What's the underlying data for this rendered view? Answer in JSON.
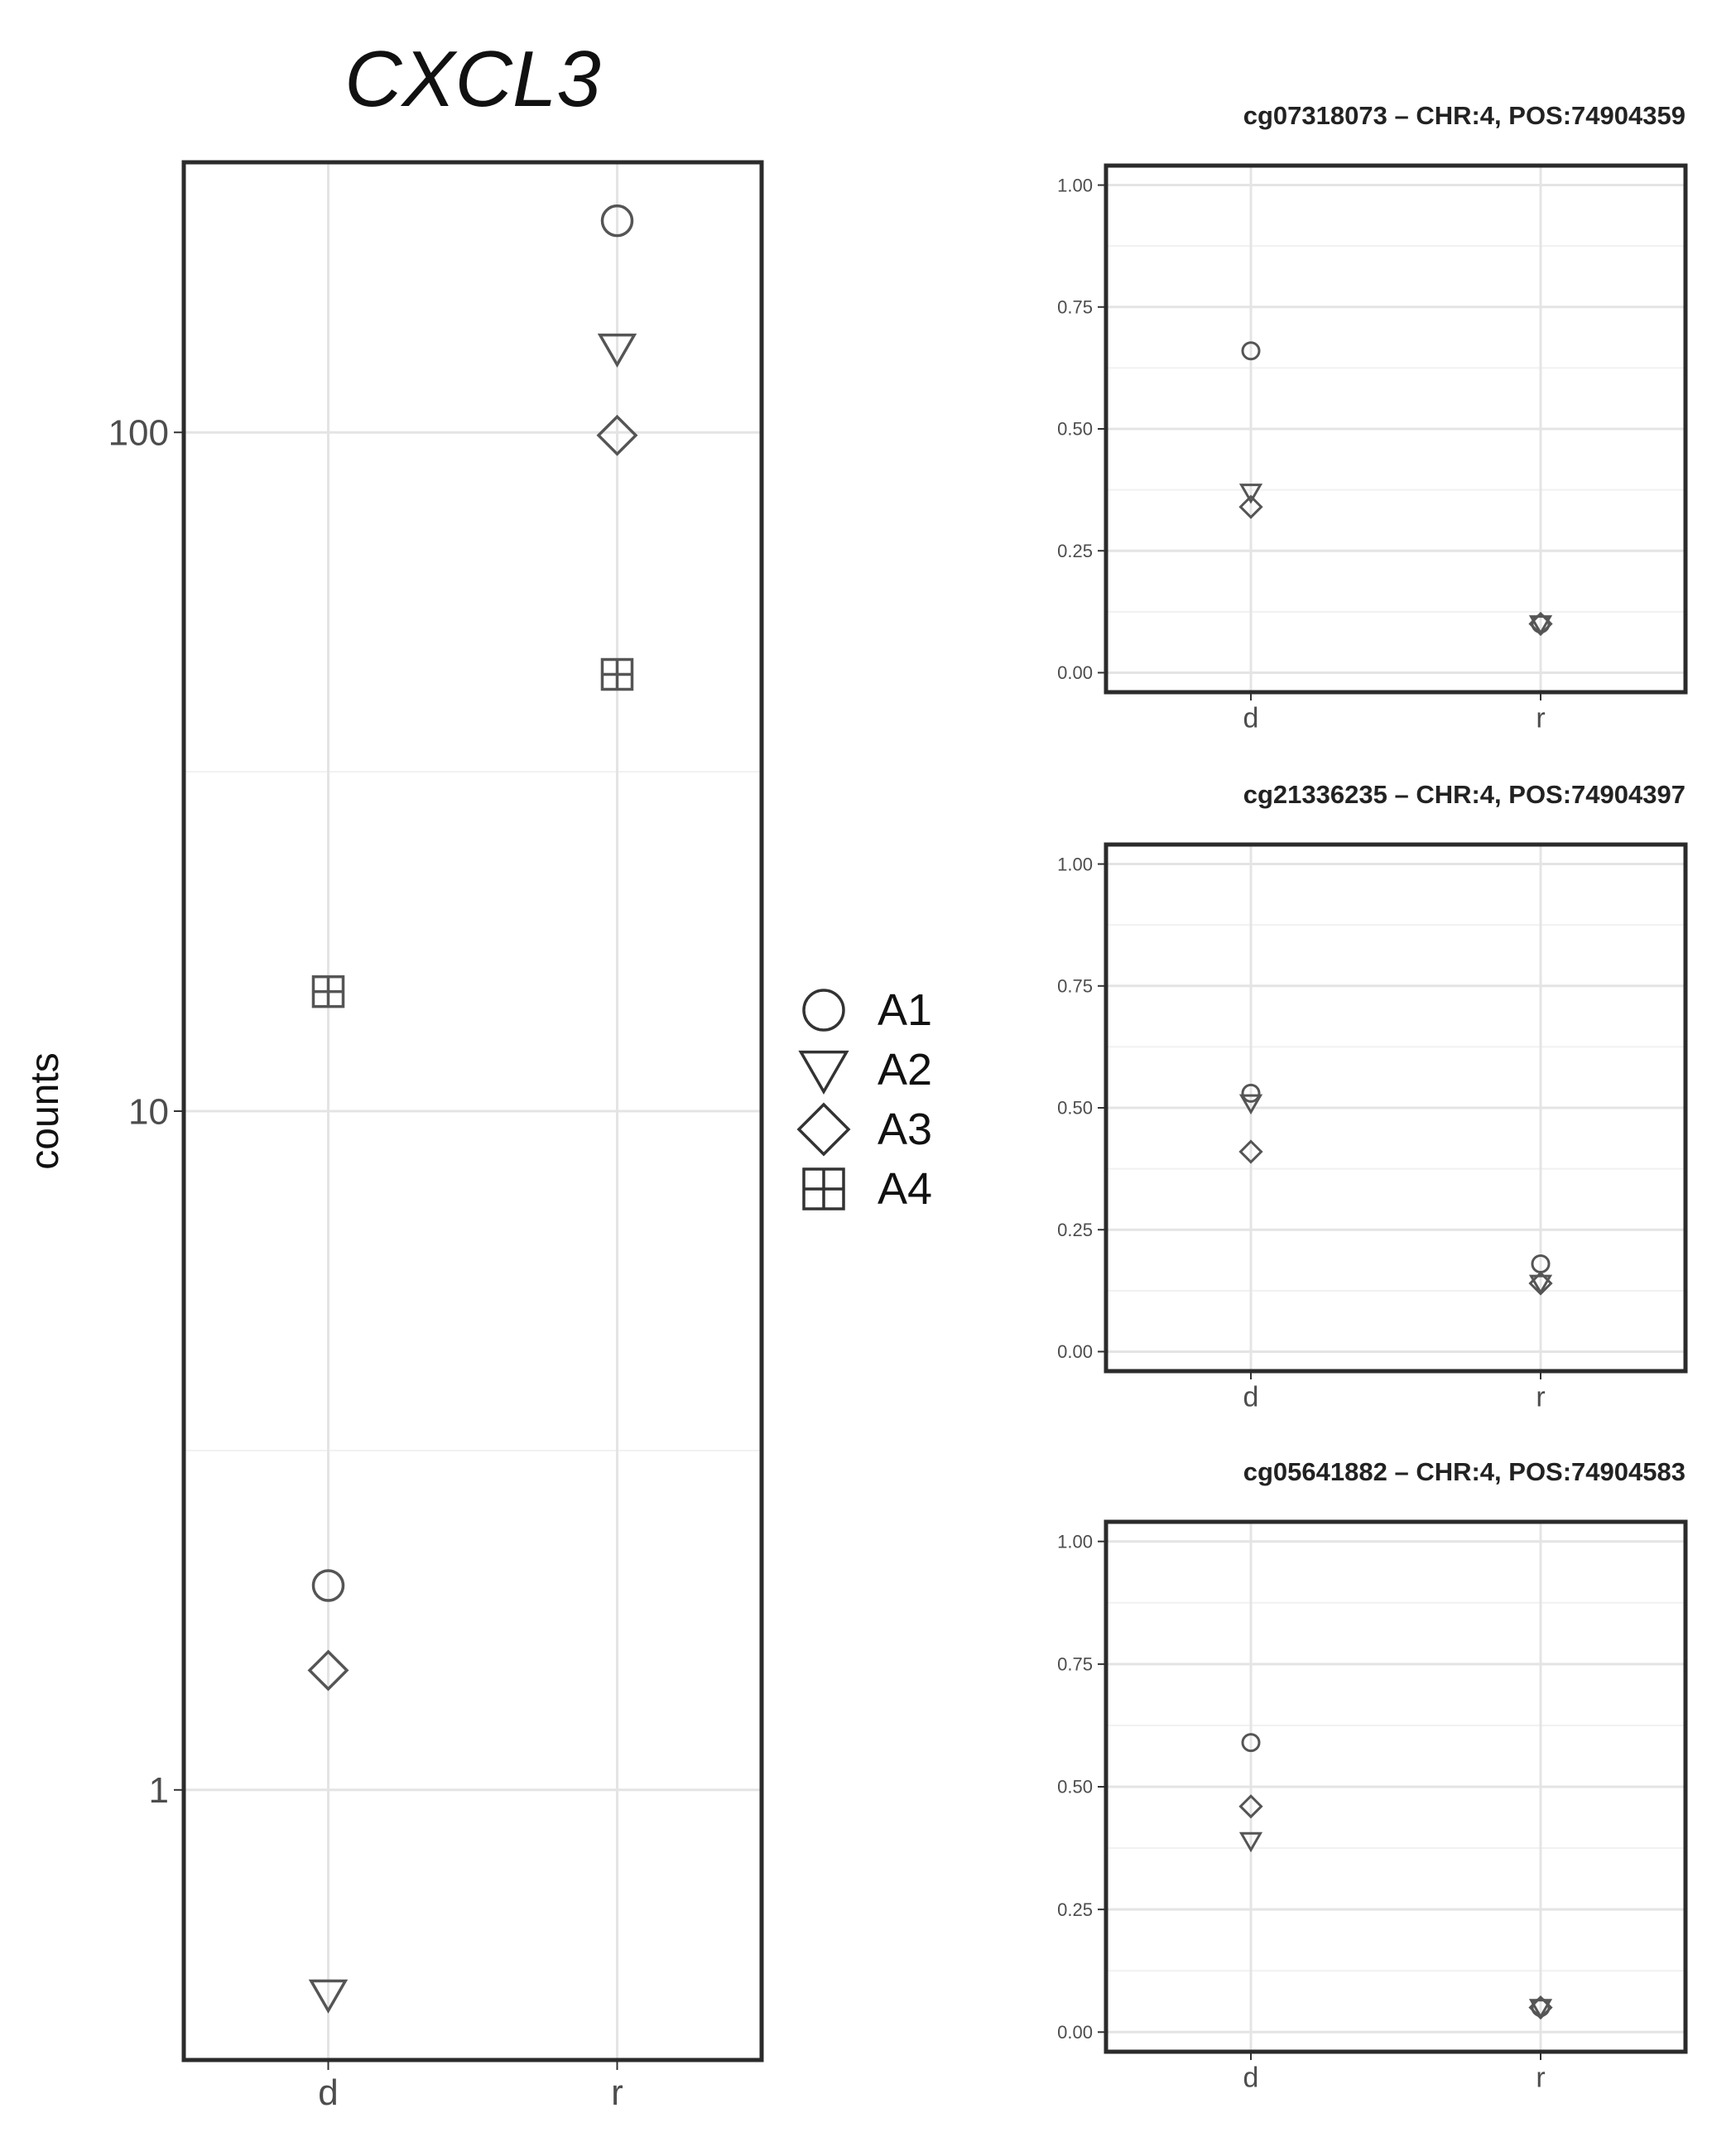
{
  "figure": {
    "legend": {
      "placement": "between-panels",
      "items": [
        {
          "label": "A1",
          "shape": "circle-icon"
        },
        {
          "label": "A2",
          "shape": "triangle-down-icon"
        },
        {
          "label": "A3",
          "shape": "diamond-icon"
        },
        {
          "label": "A4",
          "shape": "square-plus-icon"
        }
      ]
    }
  },
  "chart_data": [
    {
      "type": "scatter",
      "title": "CXCL3",
      "xlabel": "",
      "ylabel": "counts",
      "yscale": "log",
      "categories": [
        "d",
        "r"
      ],
      "ylim": [
        0.4,
        250
      ],
      "y_ticks": [
        1,
        10,
        100
      ],
      "y_tick_labels": [
        "1",
        "10",
        "100"
      ],
      "grid": true,
      "series": [
        {
          "name": "A1",
          "values": [
            2.0,
            205
          ]
        },
        {
          "name": "A2",
          "values": [
            0.5,
            133
          ]
        },
        {
          "name": "A3",
          "values": [
            1.5,
            99
          ]
        },
        {
          "name": "A4",
          "values": [
            15,
            44
          ]
        }
      ]
    },
    {
      "type": "scatter",
      "title": "cg07318073 – CHR:4, POS:74904359",
      "xlabel": "",
      "ylabel": "",
      "categories": [
        "d",
        "r"
      ],
      "ylim": [
        -0.04,
        1.04
      ],
      "y_ticks": [
        0,
        0.25,
        0.5,
        0.75,
        1
      ],
      "y_tick_labels": [
        "0.00",
        "0.25",
        "0.50",
        "0.75",
        "1.00"
      ],
      "grid": true,
      "series": [
        {
          "name": "A1",
          "values": [
            0.66,
            0.1
          ]
        },
        {
          "name": "A2",
          "values": [
            0.37,
            0.1
          ]
        },
        {
          "name": "A3",
          "values": [
            0.34,
            0.1
          ]
        },
        {
          "name": "A4",
          "values": [
            null,
            null
          ]
        }
      ]
    },
    {
      "type": "scatter",
      "title": "cg21336235 – CHR:4, POS:74904397",
      "xlabel": "",
      "ylabel": "",
      "categories": [
        "d",
        "r"
      ],
      "ylim": [
        -0.04,
        1.04
      ],
      "y_ticks": [
        0,
        0.25,
        0.5,
        0.75,
        1
      ],
      "y_tick_labels": [
        "0.00",
        "0.25",
        "0.50",
        "0.75",
        "1.00"
      ],
      "grid": true,
      "series": [
        {
          "name": "A1",
          "values": [
            0.53,
            0.18
          ]
        },
        {
          "name": "A2",
          "values": [
            0.51,
            0.14
          ]
        },
        {
          "name": "A3",
          "values": [
            0.41,
            0.14
          ]
        },
        {
          "name": "A4",
          "values": [
            null,
            null
          ]
        }
      ]
    },
    {
      "type": "scatter",
      "title": "cg05641882 – CHR:4, POS:74904583",
      "xlabel": "",
      "ylabel": "",
      "categories": [
        "d",
        "r"
      ],
      "ylim": [
        -0.04,
        1.04
      ],
      "y_ticks": [
        0,
        0.25,
        0.5,
        0.75,
        1
      ],
      "y_tick_labels": [
        "0.00",
        "0.25",
        "0.50",
        "0.75",
        "1.00"
      ],
      "grid": true,
      "series": [
        {
          "name": "A1",
          "values": [
            0.59,
            0.05
          ]
        },
        {
          "name": "A2",
          "values": [
            0.39,
            0.05
          ]
        },
        {
          "name": "A3",
          "values": [
            0.46,
            0.05
          ]
        },
        {
          "name": "A4",
          "values": [
            null,
            null
          ]
        }
      ]
    }
  ]
}
